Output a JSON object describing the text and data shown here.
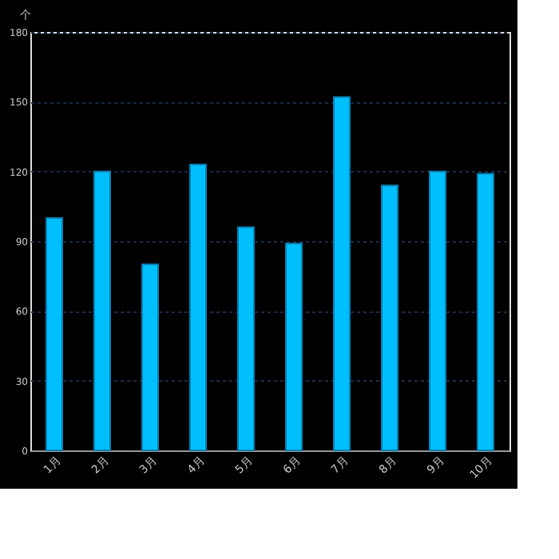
{
  "chart_data": {
    "type": "bar",
    "ylabel": "个",
    "categories": [
      "1月",
      "2月",
      "3月",
      "4月",
      "5月",
      "6月",
      "7月",
      "8月",
      "9月",
      "10月"
    ],
    "series": [
      {
        "color": "#00bfff",
        "values": [
          100,
          120,
          80,
          123,
          96,
          89,
          152,
          114,
          120,
          119
        ]
      }
    ],
    "ylim": [
      0,
      180
    ],
    "yticks": [
      0,
      30,
      60,
      90,
      120,
      150,
      180
    ],
    "grid": "y",
    "legend": false
  }
}
